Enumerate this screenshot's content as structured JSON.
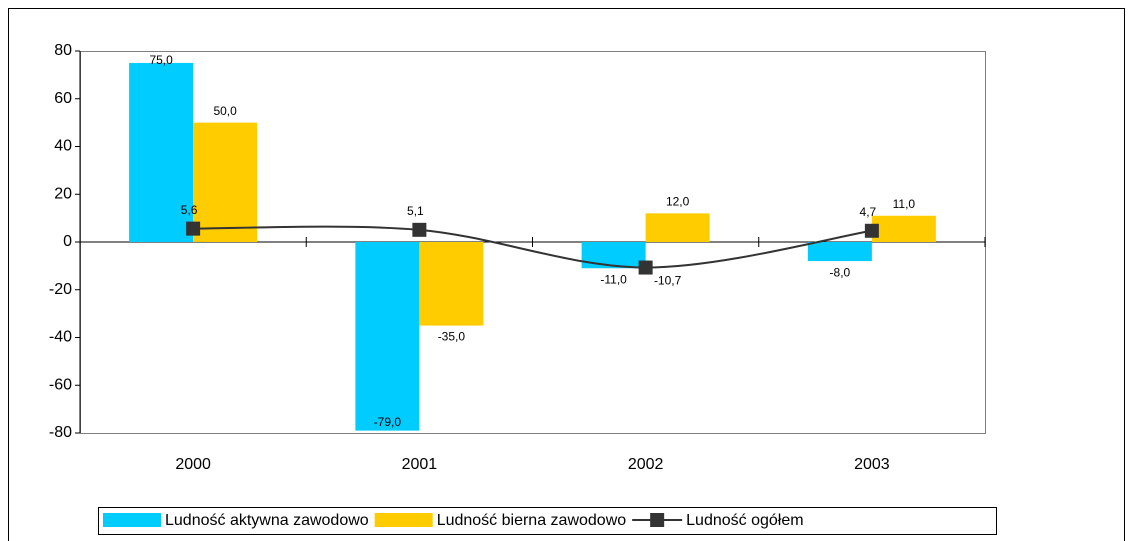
{
  "chart_data": {
    "type": "bar",
    "categories": [
      "2000",
      "2001",
      "2002",
      "2003"
    ],
    "series": [
      {
        "name": "Ludność aktywna zawodowo",
        "color": "#00ccff",
        "values": [
          75,
          -79,
          -11,
          -8
        ],
        "value_labels": [
          "75,0",
          "-79,0",
          "-11,0",
          "-8,0"
        ]
      },
      {
        "name": "Ludność bierna zawodowo",
        "color": "#ffcc00",
        "values": [
          50,
          -35,
          12,
          11
        ],
        "value_labels": [
          "50,0",
          "-35,0",
          "12,0",
          "11,0"
        ]
      },
      {
        "name": "Ludność ogółem",
        "type": "line",
        "color": "#333333",
        "values": [
          5.6,
          5.1,
          -10.7,
          4.7
        ],
        "value_labels": [
          "5,6",
          "5,1",
          "-10,7",
          "4,7"
        ]
      }
    ],
    "ylim": [
      -80,
      80
    ],
    "yticks": [
      -80,
      -60,
      -40,
      -20,
      0,
      20,
      40,
      60,
      80
    ],
    "grid": false,
    "legend": "bottom"
  }
}
